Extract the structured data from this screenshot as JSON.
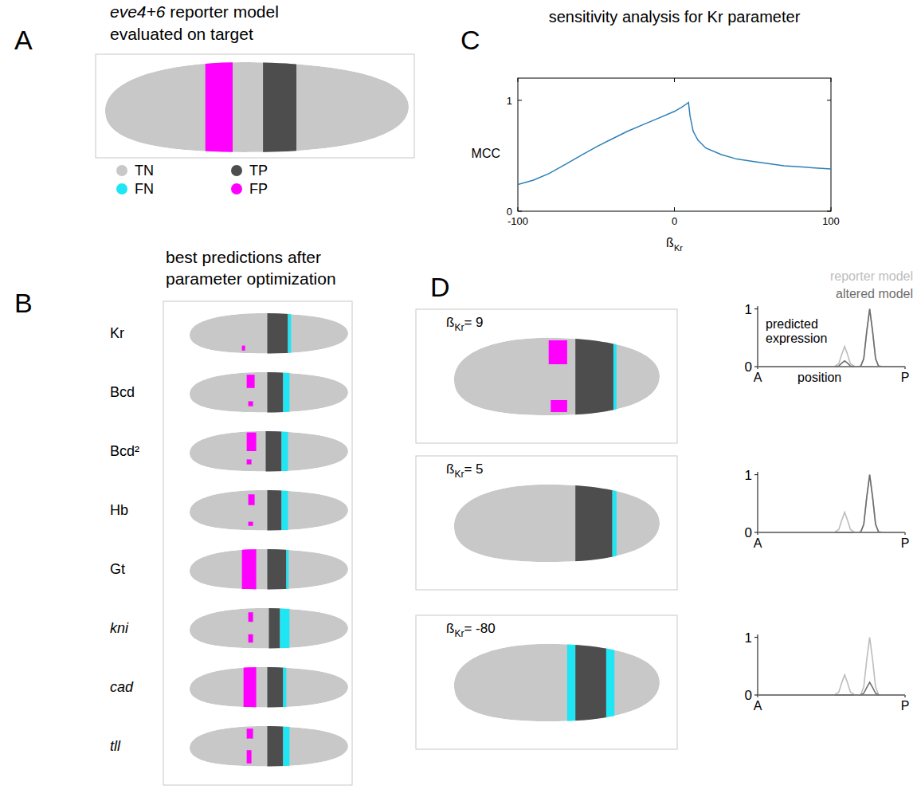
{
  "embryo_background": "TN",
  "legend": [
    {
      "label": "TN",
      "color": "#c8c8c8"
    },
    {
      "label": "TP",
      "color": "#4d4d4d"
    },
    {
      "label": "FN",
      "color": "#1ee6f5"
    },
    {
      "label": "FP",
      "color": "#ff00ff"
    }
  ],
  "panels": {
    "A": {
      "letter": "A",
      "title": [
        [
          {
            "text": "eve4+6",
            "italic": true
          },
          {
            "text": " reporter model"
          }
        ],
        [
          {
            "text": "evaluated on target"
          }
        ]
      ],
      "regions": [
        {
          "class": "FP",
          "from": 0.33,
          "to": 0.42
        },
        {
          "class": "TP",
          "from": 0.52,
          "to": 0.63
        }
      ]
    },
    "B": {
      "letter": "B",
      "title": [
        [
          {
            "text": "best predictions after"
          }
        ],
        [
          {
            "text": "parameter optimization"
          }
        ]
      ],
      "rows": [
        {
          "label": "Kr",
          "italic": false,
          "regions": [
            {
              "class": "FP",
              "from": 0.33,
              "to": 0.35,
              "dv": [
                0.8,
                0.92
              ]
            },
            {
              "class": "TP",
              "from": 0.49,
              "to": 0.62
            },
            {
              "class": "FN",
              "from": 0.62,
              "to": 0.64
            }
          ]
        },
        {
          "label": "Bcd",
          "italic": false,
          "regions": [
            {
              "class": "FP",
              "from": 0.36,
              "to": 0.41,
              "dv": [
                0.08,
                0.4
              ]
            },
            {
              "class": "FP",
              "from": 0.37,
              "to": 0.4,
              "dv": [
                0.72,
                0.84
              ]
            },
            {
              "class": "TP",
              "from": 0.49,
              "to": 0.59
            },
            {
              "class": "FN",
              "from": 0.59,
              "to": 0.63
            }
          ]
        },
        {
          "label": "Bcd²",
          "italic": false,
          "regions": [
            {
              "class": "FP",
              "from": 0.36,
              "to": 0.42,
              "dv": [
                0.05,
                0.5
              ]
            },
            {
              "class": "FP",
              "from": 0.36,
              "to": 0.39,
              "dv": [
                0.7,
                0.82
              ]
            },
            {
              "class": "TP",
              "from": 0.48,
              "to": 0.58
            },
            {
              "class": "FN",
              "from": 0.58,
              "to": 0.62
            }
          ]
        },
        {
          "label": "Hb",
          "italic": false,
          "regions": [
            {
              "class": "FP",
              "from": 0.37,
              "to": 0.41,
              "dv": [
                0.12,
                0.38
              ]
            },
            {
              "class": "FP",
              "from": 0.37,
              "to": 0.4,
              "dv": [
                0.78,
                0.88
              ]
            },
            {
              "class": "TP",
              "from": 0.49,
              "to": 0.58
            },
            {
              "class": "FN",
              "from": 0.58,
              "to": 0.62
            }
          ]
        },
        {
          "label": "Gt",
          "italic": false,
          "regions": [
            {
              "class": "FP",
              "from": 0.33,
              "to": 0.42
            },
            {
              "class": "TP",
              "from": 0.49,
              "to": 0.61
            },
            {
              "class": "FN",
              "from": 0.61,
              "to": 0.625
            }
          ]
        },
        {
          "label": "kni",
          "italic": true,
          "regions": [
            {
              "class": "FP",
              "from": 0.37,
              "to": 0.4,
              "dv": [
                0.12,
                0.35
              ]
            },
            {
              "class": "FP",
              "from": 0.37,
              "to": 0.4,
              "dv": [
                0.65,
                0.85
              ]
            },
            {
              "class": "TP",
              "from": 0.5,
              "to": 0.57
            },
            {
              "class": "FN",
              "from": 0.57,
              "to": 0.63
            }
          ]
        },
        {
          "label": "cad",
          "italic": true,
          "regions": [
            {
              "class": "FP",
              "from": 0.34,
              "to": 0.42
            },
            {
              "class": "TP",
              "from": 0.49,
              "to": 0.59
            },
            {
              "class": "FN",
              "from": 0.59,
              "to": 0.61
            }
          ]
        },
        {
          "label": "tll",
          "italic": true,
          "regions": [
            {
              "class": "FP",
              "from": 0.36,
              "to": 0.4,
              "dv": [
                0.08,
                0.32
              ]
            },
            {
              "class": "FP",
              "from": 0.36,
              "to": 0.39,
              "dv": [
                0.6,
                0.92
              ]
            },
            {
              "class": "TP",
              "from": 0.49,
              "to": 0.59
            },
            {
              "class": "FN",
              "from": 0.59,
              "to": 0.63
            }
          ]
        }
      ]
    },
    "C": {
      "letter": "C"
    },
    "D": {
      "letter": "D",
      "cases": [
        {
          "label": [
            {
              "text": "ß"
            },
            {
              "text": "Kr",
              "sub": true
            },
            {
              "text": "= 9"
            }
          ],
          "regions": [
            {
              "class": "FP",
              "from": 0.46,
              "to": 0.55,
              "dv": [
                0.05,
                0.35
              ]
            },
            {
              "class": "FP",
              "from": 0.47,
              "to": 0.55,
              "dv": [
                0.8,
                0.95
              ]
            },
            {
              "class": "TP",
              "from": 0.59,
              "to": 0.775
            },
            {
              "class": "FN",
              "from": 0.775,
              "to": 0.79
            }
          ]
        },
        {
          "label": [
            {
              "text": "ß"
            },
            {
              "text": "Kr",
              "sub": true
            },
            {
              "text": "= 5"
            }
          ],
          "regions": [
            {
              "class": "TP",
              "from": 0.59,
              "to": 0.77
            },
            {
              "class": "FN",
              "from": 0.77,
              "to": 0.79
            }
          ]
        },
        {
          "label": [
            {
              "text": "ß"
            },
            {
              "text": "Kr",
              "sub": true
            },
            {
              "text": "= -80"
            }
          ],
          "regions": [
            {
              "class": "FN",
              "from": 0.55,
              "to": 0.59
            },
            {
              "class": "TP",
              "from": 0.59,
              "to": 0.74
            },
            {
              "class": "FN",
              "from": 0.74,
              "to": 0.78
            }
          ]
        }
      ]
    }
  },
  "chart_data": [
    {
      "type": "line",
      "title": "sensitivity analysis for Kr parameter",
      "x_label": [
        {
          "text": "ß"
        },
        {
          "text": "Kr",
          "sub": true
        }
      ],
      "y_label": "MCC",
      "x": [
        -100,
        -90,
        -80,
        -70,
        -60,
        -50,
        -40,
        -30,
        -20,
        -10,
        0,
        5,
        8,
        9,
        10,
        12,
        15,
        20,
        30,
        40,
        50,
        60,
        70,
        80,
        90,
        100
      ],
      "values": [
        0.24,
        0.28,
        0.34,
        0.42,
        0.5,
        0.58,
        0.65,
        0.72,
        0.78,
        0.84,
        0.9,
        0.94,
        0.97,
        0.98,
        0.86,
        0.72,
        0.64,
        0.57,
        0.51,
        0.47,
        0.45,
        0.43,
        0.41,
        0.4,
        0.39,
        0.38
      ],
      "color": "#2c7fb8",
      "xlim": [
        -100,
        100
      ],
      "ylim": [
        0,
        1.2
      ],
      "xticks": [
        -100,
        0,
        100
      ],
      "yticks": [
        0,
        1
      ]
    },
    {
      "type": "line",
      "x_label": "position",
      "y_label": "predicted expression",
      "legend": "top-right",
      "x": [
        0,
        0.52,
        0.55,
        0.57,
        0.59,
        0.61,
        0.63,
        0.66,
        0.68,
        0.7,
        0.72,
        0.74,
        0.76,
        0.78,
        0.8,
        0.82,
        0.85,
        1
      ],
      "series": [
        {
          "name": "reporter model",
          "color": "#bdbdbd",
          "values": [
            0,
            0,
            0.05,
            0.21,
            0.35,
            0.21,
            0.05,
            0,
            0,
            0.01,
            0.14,
            0.61,
            1,
            0.61,
            0.14,
            0.01,
            0,
            0
          ]
        },
        {
          "name": "altered model",
          "color": "#6e6e6e",
          "values": [
            0,
            0,
            0.01,
            0.06,
            0.1,
            0.06,
            0.01,
            0,
            0,
            0.01,
            0.14,
            0.61,
            1,
            0.61,
            0.14,
            0.01,
            0,
            0
          ]
        }
      ],
      "xlim": [
        0,
        1
      ],
      "ylim": [
        0,
        1.05
      ],
      "xticks": [
        {
          "value": 0,
          "label": "A"
        },
        {
          "value": 1,
          "label": "P"
        }
      ],
      "yticks": [
        0,
        1
      ]
    },
    {
      "type": "line",
      "x": [
        0,
        0.52,
        0.55,
        0.57,
        0.59,
        0.61,
        0.63,
        0.66,
        0.68,
        0.7,
        0.72,
        0.74,
        0.76,
        0.78,
        0.8,
        0.82,
        0.85,
        1
      ],
      "series": [
        {
          "color": "#bdbdbd",
          "values": [
            0,
            0,
            0.05,
            0.21,
            0.35,
            0.21,
            0.05,
            0,
            0,
            0.01,
            0.14,
            0.61,
            1,
            0.61,
            0.14,
            0.01,
            0,
            0
          ]
        },
        {
          "color": "#6e6e6e",
          "values": [
            0,
            0,
            0,
            0,
            0,
            0,
            0,
            0,
            0,
            0.01,
            0.14,
            0.61,
            1,
            0.61,
            0.14,
            0.01,
            0,
            0
          ]
        }
      ],
      "xlim": [
        0,
        1
      ],
      "ylim": [
        0,
        1.05
      ],
      "xticks": [
        {
          "value": 0,
          "label": "A"
        },
        {
          "value": 1,
          "label": "P"
        }
      ],
      "yticks": [
        0,
        1
      ]
    },
    {
      "type": "line",
      "x": [
        0,
        0.52,
        0.55,
        0.57,
        0.59,
        0.61,
        0.63,
        0.66,
        0.68,
        0.7,
        0.72,
        0.74,
        0.76,
        0.78,
        0.8,
        0.82,
        0.85,
        1
      ],
      "series": [
        {
          "color": "#bdbdbd",
          "values": [
            0,
            0,
            0.05,
            0.21,
            0.35,
            0.21,
            0.05,
            0,
            0,
            0.01,
            0.14,
            0.61,
            1,
            0.61,
            0.14,
            0.01,
            0,
            0
          ]
        },
        {
          "color": "#6e6e6e",
          "values": [
            0,
            0,
            0,
            0,
            0,
            0,
            0,
            0,
            0,
            0,
            0.03,
            0.13,
            0.22,
            0.13,
            0.03,
            0,
            0,
            0
          ]
        }
      ],
      "xlim": [
        0,
        1
      ],
      "ylim": [
        0,
        1.05
      ],
      "xticks": [
        {
          "value": 0,
          "label": "A"
        },
        {
          "value": 1,
          "label": "P"
        }
      ],
      "yticks": [
        0,
        1
      ]
    }
  ]
}
